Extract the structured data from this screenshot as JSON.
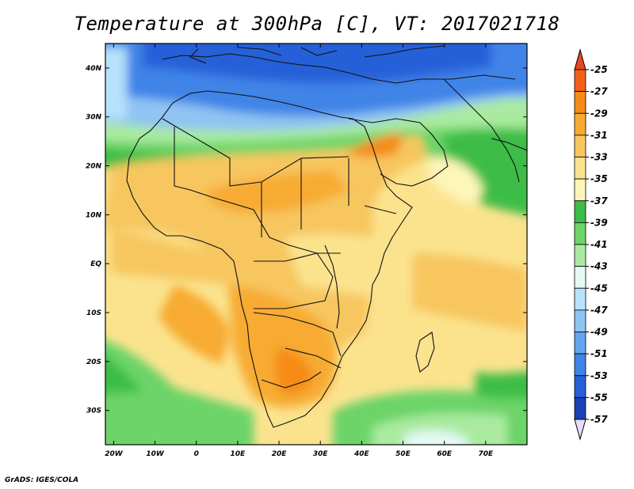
{
  "title": "Temperature at 300hPa [C], VT: 2017021718",
  "credit": "GrADS: IGES/COLA",
  "map": {
    "lon_range": [
      -22,
      80
    ],
    "lat_range": [
      -37,
      45
    ],
    "lon_ticks": [
      {
        "value": -20,
        "label": "20W"
      },
      {
        "value": -10,
        "label": "10W"
      },
      {
        "value": 0,
        "label": "0"
      },
      {
        "value": 10,
        "label": "10E"
      },
      {
        "value": 20,
        "label": "20E"
      },
      {
        "value": 30,
        "label": "30E"
      },
      {
        "value": 40,
        "label": "40E"
      },
      {
        "value": 50,
        "label": "50E"
      },
      {
        "value": 60,
        "label": "60E"
      },
      {
        "value": 70,
        "label": "70E"
      }
    ],
    "lat_ticks": [
      {
        "value": 40,
        "label": "40N"
      },
      {
        "value": 30,
        "label": "30N"
      },
      {
        "value": 20,
        "label": "20N"
      },
      {
        "value": 10,
        "label": "10N"
      },
      {
        "value": 0,
        "label": "EQ"
      },
      {
        "value": -10,
        "label": "10S"
      },
      {
        "value": -20,
        "label": "20S"
      },
      {
        "value": -30,
        "label": "30S"
      }
    ]
  },
  "colorbar": {
    "labels": [
      "-25",
      "-27",
      "-29",
      "-31",
      "-33",
      "-35",
      "-37",
      "-39",
      "-41",
      "-43",
      "-45",
      "-47",
      "-49",
      "-51",
      "-53",
      "-55",
      "-57"
    ],
    "top_color": "#e8481b",
    "bottom_color": "#e4e0fb",
    "colors": [
      "#f26018",
      "#f68c16",
      "#f7ab33",
      "#f7c65f",
      "#fbe38e",
      "#fdf6b8",
      "#3dbd47",
      "#6cd468",
      "#aaeaa0",
      "#e4f9f4",
      "#b6e2fb",
      "#8fc4f3",
      "#63a5ef",
      "#3f84e8",
      "#2660d8",
      "#1741b4",
      "#10228a"
    ]
  }
}
